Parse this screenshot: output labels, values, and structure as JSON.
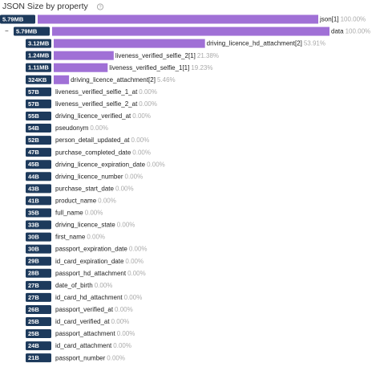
{
  "header": {
    "title": "JSON Size by property",
    "help_icon": "?"
  },
  "rows": [
    {
      "size": "5.79MB",
      "name": "json[1]",
      "percent": "100.00%",
      "value": 100
    },
    {
      "toggle": "−",
      "size": "5.79MB",
      "name": "data",
      "percent": "100.00%",
      "value": 100
    },
    {
      "size": "3.12MB",
      "name": "driving_licence_hd_attachment[2]",
      "percent": "53.91%",
      "value": 53.91
    },
    {
      "size": "1.24MB",
      "name": "liveness_verified_selfie_2[1]",
      "percent": "21.38%",
      "value": 21.38
    },
    {
      "size": "1.11MB",
      "name": "liveness_verified_selfie_1[1]",
      "percent": "19.23%",
      "value": 19.23
    },
    {
      "size": "324KB",
      "name": "driving_licence_attachment[2]",
      "percent": "5.46%",
      "value": 5.46
    },
    {
      "size": "57B",
      "name": "liveness_verified_selfie_1_at",
      "percent": "0.00%",
      "value": 0
    },
    {
      "size": "57B",
      "name": "liveness_verified_selfie_2_at",
      "percent": "0.00%",
      "value": 0
    },
    {
      "size": "55B",
      "name": "driving_licence_verified_at",
      "percent": "0.00%",
      "value": 0
    },
    {
      "size": "54B",
      "name": "pseudonym",
      "percent": "0.00%",
      "value": 0
    },
    {
      "size": "52B",
      "name": "person_detail_updated_at",
      "percent": "0.00%",
      "value": 0
    },
    {
      "size": "47B",
      "name": "purchase_completed_date",
      "percent": "0.00%",
      "value": 0
    },
    {
      "size": "45B",
      "name": "driving_licence_expiration_date",
      "percent": "0.00%",
      "value": 0
    },
    {
      "size": "44B",
      "name": "driving_licence_number",
      "percent": "0.00%",
      "value": 0
    },
    {
      "size": "43B",
      "name": "purchase_start_date",
      "percent": "0.00%",
      "value": 0
    },
    {
      "size": "41B",
      "name": "product_name",
      "percent": "0.00%",
      "value": 0
    },
    {
      "size": "35B",
      "name": "full_name",
      "percent": "0.00%",
      "value": 0
    },
    {
      "size": "33B",
      "name": "driving_licence_state",
      "percent": "0.00%",
      "value": 0
    },
    {
      "size": "30B",
      "name": "first_name",
      "percent": "0.00%",
      "value": 0
    },
    {
      "size": "30B",
      "name": "passport_expiration_date",
      "percent": "0.00%",
      "value": 0
    },
    {
      "size": "29B",
      "name": "id_card_expiration_date",
      "percent": "0.00%",
      "value": 0
    },
    {
      "size": "28B",
      "name": "passport_hd_attachment",
      "percent": "0.00%",
      "value": 0
    },
    {
      "size": "27B",
      "name": "date_of_birth",
      "percent": "0.00%",
      "value": 0
    },
    {
      "size": "27B",
      "name": "id_card_hd_attachment",
      "percent": "0.00%",
      "value": 0
    },
    {
      "size": "26B",
      "name": "passport_verified_at",
      "percent": "0.00%",
      "value": 0
    },
    {
      "size": "25B",
      "name": "id_card_verified_at",
      "percent": "0.00%",
      "value": 0
    },
    {
      "size": "25B",
      "name": "passport_attachment",
      "percent": "0.00%",
      "value": 0
    },
    {
      "size": "24B",
      "name": "id_card_attachment",
      "percent": "0.00%",
      "value": 0
    },
    {
      "size": "21B",
      "name": "passport_number",
      "percent": "0.00%",
      "value": 0
    }
  ]
}
